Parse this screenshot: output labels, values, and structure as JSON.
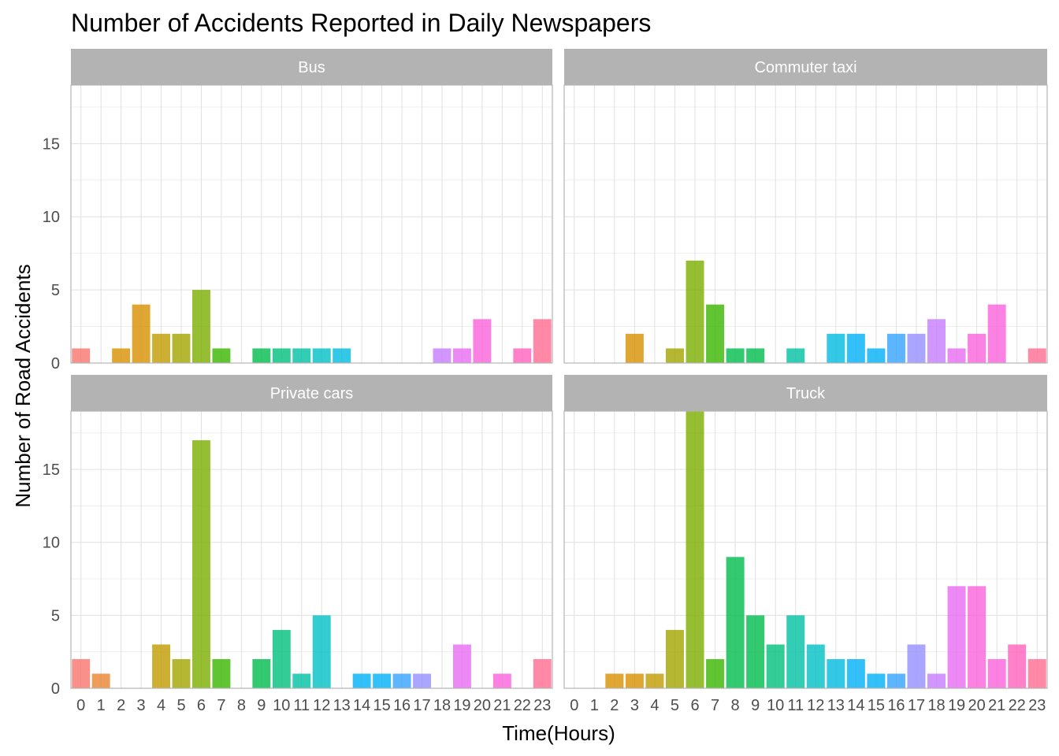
{
  "chart_data": {
    "type": "bar",
    "title": "Number of Accidents Reported in Daily Newspapers",
    "xlabel": "Time(Hours)",
    "ylabel": "Number of Road Accidents",
    "categories": [
      "0",
      "1",
      "2",
      "3",
      "4",
      "5",
      "6",
      "7",
      "8",
      "9",
      "10",
      "11",
      "12",
      "13",
      "14",
      "15",
      "16",
      "17",
      "18",
      "19",
      "20",
      "21",
      "22",
      "23"
    ],
    "ylim": [
      0,
      19
    ],
    "yticks": [
      0,
      5,
      10,
      15
    ],
    "grid": true,
    "facets": [
      {
        "name": "Bus",
        "values": [
          1,
          0,
          1,
          4,
          2,
          2,
          5,
          1,
          0,
          1,
          1,
          1,
          1,
          1,
          0,
          0,
          0,
          0,
          1,
          1,
          3,
          0,
          1,
          3
        ]
      },
      {
        "name": "Commuter taxi",
        "values": [
          0,
          0,
          0,
          2,
          0,
          1,
          7,
          4,
          1,
          1,
          0,
          1,
          0,
          2,
          2,
          1,
          2,
          2,
          3,
          1,
          2,
          4,
          0,
          1
        ]
      },
      {
        "name": "Private cars",
        "values": [
          2,
          1,
          0,
          0,
          3,
          2,
          17,
          2,
          0,
          2,
          4,
          1,
          5,
          0,
          1,
          1,
          1,
          1,
          0,
          3,
          0,
          1,
          0,
          2
        ]
      },
      {
        "name": "Truck",
        "values": [
          0,
          0,
          1,
          1,
          1,
          4,
          19,
          2,
          9,
          5,
          3,
          5,
          3,
          2,
          2,
          1,
          1,
          3,
          1,
          7,
          7,
          2,
          3,
          2
        ]
      }
    ],
    "bar_colors": [
      "#F8766D",
      "#EA8331",
      "#D89000",
      "#C09B00",
      "#A3A500",
      "#7CAE00",
      "#39B600",
      "#00BB4E",
      "#00BF7D",
      "#00C1A3",
      "#00BFC4",
      "#00BAE0",
      "#00B0F6",
      "#35A2FF",
      "#9590FF",
      "#C77CFF",
      "#E76BF3",
      "#FA62DB",
      "#FF62BC",
      "#FF6C91"
    ],
    "strip_color": "#b3b3b3",
    "grid_color": "#e0e0e0",
    "panel_border_color": "#b3b3b3",
    "bar_opacity": 0.8
  }
}
